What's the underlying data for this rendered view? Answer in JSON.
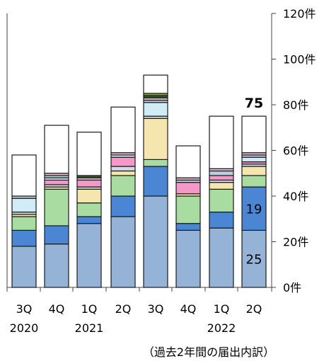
{
  "chart_data": {
    "type": "bar",
    "stacked": true,
    "categories": [
      "3Q",
      "4Q",
      "1Q",
      "2Q",
      "3Q",
      "4Q",
      "1Q",
      "2Q"
    ],
    "years": [
      "2020",
      "",
      "2021",
      "",
      "",
      "",
      "2022",
      ""
    ],
    "ylim": [
      0,
      120
    ],
    "y_ticks": [
      0,
      20,
      40,
      60,
      80,
      100,
      120
    ],
    "y_tick_labels": [
      "0件",
      "20件",
      "40件",
      "60件",
      "80件",
      "100件",
      "120件"
    ],
    "grid": false,
    "totals": [
      58,
      71,
      68,
      79,
      93,
      62,
      75,
      75
    ],
    "total_label": "75",
    "segment_labels": [
      "25",
      "19"
    ],
    "series": [
      {
        "values": [
          18,
          19,
          28,
          31,
          40,
          25,
          26,
          25
        ],
        "color": "#95b3d7"
      },
      {
        "values": [
          7,
          8,
          3,
          9,
          13,
          3,
          7,
          19
        ],
        "color": "#4a86d4"
      },
      {
        "values": [
          6,
          16,
          6,
          9,
          3,
          12,
          10,
          5
        ],
        "color": "#a8dca0"
      },
      {
        "values": [
          1,
          1,
          6,
          2,
          18,
          1,
          3,
          4
        ],
        "color": "#f5e6b0"
      },
      {
        "values": [
          1,
          1,
          1,
          2,
          1,
          0,
          1,
          1
        ],
        "color": "#cfd9e8"
      },
      {
        "values": [
          0,
          2,
          3,
          4,
          0,
          5,
          2,
          1
        ],
        "color": "#f598c8"
      },
      {
        "values": [
          6,
          1,
          0,
          1,
          6,
          0,
          0,
          2
        ],
        "color": "#d0ecf6"
      },
      {
        "values": [
          1,
          1,
          0,
          0,
          1,
          1,
          2,
          1
        ],
        "color": "#b8cfe0"
      },
      {
        "values": [
          0,
          1,
          1,
          1,
          1,
          1,
          1,
          1
        ],
        "color": "#e8b8d0"
      },
      {
        "values": [
          0,
          0,
          1,
          0,
          1,
          0,
          0,
          0
        ],
        "color": "#2e5e2a"
      },
      {
        "values": [
          0,
          0,
          0,
          0,
          1,
          0,
          0,
          0
        ],
        "color": "#7f9f3f"
      },
      {
        "values": [
          18,
          21,
          19,
          20,
          8,
          14,
          23,
          16
        ],
        "color": "#ffffff"
      }
    ]
  },
  "caption": "（過去2年間の届出内訳）"
}
